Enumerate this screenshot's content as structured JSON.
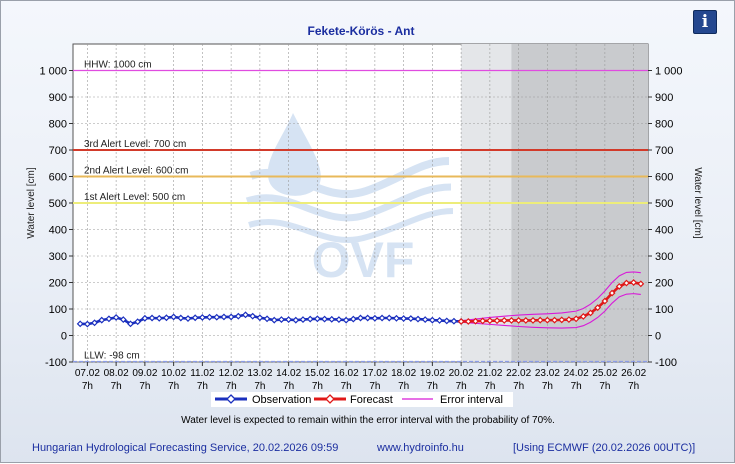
{
  "info_icon": "info-icon",
  "info_label": "i",
  "footer": {
    "service": "Hungarian Hydrological Forecasting Service, 20.02.2026 09:59",
    "url": "www.hydroinfo.hu",
    "model": "[Using ECMWF (20.02.2026  00UTC)]"
  },
  "colors": {
    "observation": "#1a2fbe",
    "forecast": "#e01818",
    "error_interval": "#d81ad8",
    "hhw": "#e04ce0",
    "llw": "#8c9ce6",
    "alert3": "#d23a2a",
    "alert2": "#e8b95a",
    "alert1": "#eded7a",
    "title": "#1b2ea0"
  },
  "chart_data": {
    "type": "line",
    "title": "Fekete-Körös - Ant",
    "ylabel_left": "Water level [cm]",
    "ylabel_right": "Water level [cm]",
    "ylim": [
      -100,
      1100
    ],
    "y_ticks": [
      -100,
      0,
      100,
      200,
      300,
      400,
      500,
      600,
      700,
      800,
      900,
      1000
    ],
    "y_tick_labels": [
      "-100",
      "0",
      "100",
      "200",
      "300",
      "400",
      "500",
      "600",
      "700",
      "800",
      "900",
      "1 000"
    ],
    "x_range": [
      6.5,
      26.5
    ],
    "x_ticks": [
      7,
      8,
      9,
      10,
      11,
      12,
      13,
      14,
      15,
      16,
      17,
      18,
      19,
      20,
      21,
      22,
      23,
      24,
      25,
      26
    ],
    "x_tick_dates": [
      "07.02",
      "08.02",
      "09.02",
      "10.02",
      "11.02",
      "12.02",
      "13.02",
      "14.02",
      "15.02",
      "16.02",
      "17.02",
      "18.02",
      "19.02",
      "20.02",
      "21.02",
      "22.02",
      "23.02",
      "24.02",
      "25.02",
      "26.02"
    ],
    "x_tick_hour": "7h",
    "forecast_start": 20,
    "uncertain_start": 21.75,
    "grid": true,
    "reference_lines": [
      {
        "label": "HHW: 1000 cm",
        "value": 1000
      },
      {
        "label": "3rd Alert Level: 700 cm",
        "value": 700
      },
      {
        "label": "2nd Alert Level: 600 cm",
        "value": 600
      },
      {
        "label": "1st Alert Level: 500 cm",
        "value": 500
      },
      {
        "label": "LLW: -98 cm",
        "value": -98
      }
    ],
    "legend": {
      "position": "bottom",
      "entries": [
        "Observation",
        "Forecast",
        "Error interval"
      ]
    },
    "note": "Water level is expected to remain within the error interval with the probability of 70%.",
    "watermark": "OVF",
    "series": [
      {
        "name": "Observation",
        "x": [
          6.75,
          7.0,
          7.25,
          7.5,
          7.75,
          8.0,
          8.25,
          8.5,
          8.75,
          9.0,
          9.25,
          9.5,
          9.75,
          10.0,
          10.25,
          10.5,
          10.75,
          11.0,
          11.25,
          11.5,
          11.75,
          12.0,
          12.25,
          12.5,
          12.75,
          13.0,
          13.25,
          13.5,
          13.75,
          14.0,
          14.25,
          14.5,
          14.75,
          15.0,
          15.25,
          15.5,
          15.75,
          16.0,
          16.25,
          16.5,
          16.75,
          17.0,
          17.25,
          17.5,
          17.75,
          18.0,
          18.25,
          18.5,
          18.75,
          19.0,
          19.25,
          19.5,
          19.75,
          20.0
        ],
        "y": [
          44,
          43,
          48,
          58,
          63,
          68,
          60,
          44,
          52,
          65,
          66,
          65,
          67,
          70,
          66,
          64,
          67,
          68,
          69,
          69,
          70,
          70,
          73,
          78,
          73,
          67,
          63,
          58,
          60,
          60,
          58,
          60,
          62,
          63,
          62,
          61,
          60,
          58,
          62,
          66,
          66,
          65,
          66,
          66,
          65,
          64,
          64,
          62,
          60,
          58,
          57,
          55,
          54,
          53
        ]
      },
      {
        "name": "Forecast",
        "x": [
          20.0,
          20.25,
          20.5,
          20.75,
          21.0,
          21.25,
          21.5,
          21.75,
          22.0,
          22.25,
          22.5,
          22.75,
          23.0,
          23.25,
          23.5,
          23.75,
          24.0,
          24.25,
          24.5,
          24.75,
          25.0,
          25.25,
          25.5,
          25.75,
          26.0,
          26.25
        ],
        "y": [
          53,
          53,
          54,
          55,
          56,
          56,
          57,
          57,
          57,
          57,
          57,
          58,
          58,
          58,
          59,
          60,
          63,
          72,
          85,
          105,
          130,
          160,
          185,
          198,
          200,
          195
        ]
      },
      {
        "name": "Error interval",
        "x": [
          20.0,
          20.5,
          21.0,
          21.5,
          22.0,
          22.5,
          23.0,
          23.5,
          24.0,
          24.25,
          24.5,
          24.75,
          25.0,
          25.25,
          25.5,
          25.75,
          26.0,
          26.25
        ],
        "upper": [
          56,
          62,
          68,
          73,
          77,
          80,
          82,
          85,
          92,
          102,
          118,
          140,
          168,
          200,
          225,
          238,
          240,
          237
        ],
        "lower": [
          50,
          46,
          42,
          38,
          34,
          31,
          29,
          28,
          30,
          37,
          50,
          68,
          92,
          122,
          146,
          156,
          158,
          155
        ]
      }
    ]
  }
}
